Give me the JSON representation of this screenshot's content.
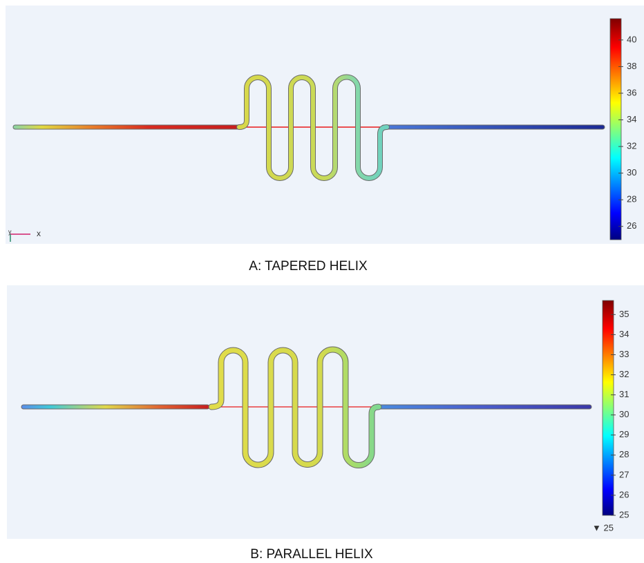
{
  "panels": [
    {
      "caption": "A: TAPERED HELIX",
      "axis_labels": [
        "y",
        "x"
      ],
      "colorbar": {
        "lim": [
          25,
          41.6
        ],
        "ticks": [
          26,
          28,
          30,
          32,
          34,
          36,
          38,
          40
        ]
      }
    },
    {
      "caption": "B: PARALLEL HELIX",
      "min_label": "▼ 25",
      "colorbar": {
        "lim": [
          25,
          35.7
        ],
        "ticks": [
          25,
          26,
          27,
          28,
          29,
          30,
          31,
          32,
          33,
          34,
          35
        ]
      }
    }
  ]
}
